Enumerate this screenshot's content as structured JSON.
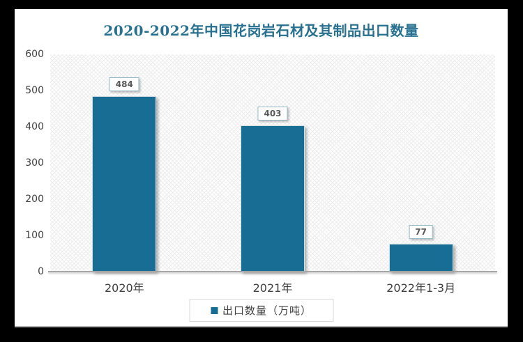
{
  "title": "2020-2022年中国花岗岩石材及其制品出口数量",
  "colors": {
    "bar": "#176D93",
    "title_text": "#27708F",
    "axis_text": "#404040",
    "value_label_text": "#595959",
    "value_label_border": "#93B9C9",
    "legend_border": "#D9D9D9",
    "axis_line": "#A6A6A6",
    "canvas_background": "#FFFFFF",
    "frame_background": "#000000"
  },
  "chart_data": {
    "type": "bar",
    "title": "2020-2022年中国花岗岩石材及其制品出口数量",
    "categories": [
      "2020年",
      "2021年",
      "2022年1-3月"
    ],
    "series": [
      {
        "name": "出口数量（万吨）",
        "values": [
          484,
          403,
          77
        ]
      }
    ],
    "data_labels": [
      "484",
      "403",
      "77"
    ],
    "xlabel": "",
    "ylabel": "",
    "ylim": [
      0,
      600
    ],
    "ytick_interval": 100,
    "ytick_labels": [
      "600",
      "500",
      "400",
      "300",
      "200",
      "100",
      "0"
    ],
    "grid": false,
    "plot_background": "diagonal-hatch",
    "legend_position": "bottom"
  },
  "legend": {
    "items": [
      {
        "label": "出口数量（万吨）",
        "color": "#176D93"
      }
    ]
  }
}
